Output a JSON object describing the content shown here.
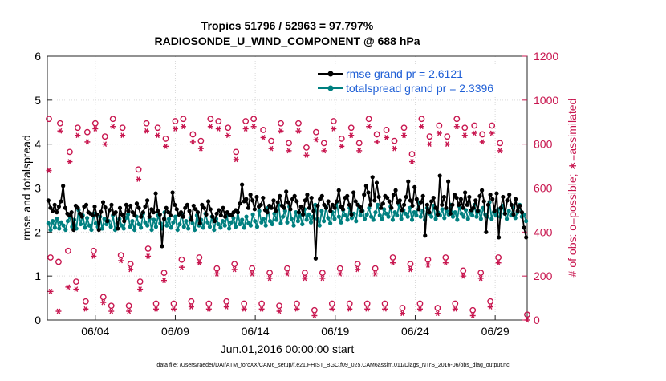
{
  "chart_data": {
    "type": "line",
    "title": "Tropics 51796 / 52963 = 97.797%",
    "subtitle": "RADIOSONDE_U_WIND_COMPONENT @ 688 hPa",
    "xlabel": "Jun.01,2016 00:00:00 start",
    "ylabel_left": "rmse and totalspread",
    "ylabel_right": "# of obs: o=possible; ∗=assimilated",
    "xlim": [
      1,
      31
    ],
    "ylim_left": [
      0,
      6
    ],
    "ylim_right": [
      0,
      1200
    ],
    "x_ticks": [
      4,
      9,
      14,
      19,
      24,
      29
    ],
    "x_tick_labels": [
      "06/04",
      "06/09",
      "06/14",
      "06/19",
      "06/24",
      "06/29"
    ],
    "y_left_ticks": [
      "0",
      "1",
      "2",
      "3",
      "4",
      "5",
      "6"
    ],
    "y_right_ticks": [
      "0",
      "200",
      "400",
      "600",
      "800",
      "1000",
      "1200"
    ],
    "legend_position": "top-right",
    "grid": true,
    "colors": {
      "rmse": "#000000",
      "spread": "#008080",
      "obs": "#c8164f"
    },
    "series": [
      {
        "name": "rmse grand pr = 2.6121",
        "axis": "left",
        "values": [
          2.72,
          2.55,
          2.48,
          2.62,
          2.45,
          2.58,
          2.7,
          3.05,
          2.55,
          2.42,
          2.38,
          2.45,
          2.05,
          2.6,
          2.55,
          2.42,
          2.35,
          2.58,
          2.62,
          2.45,
          2.42,
          2.38,
          2.58,
          2.4,
          2.05,
          2.46,
          2.68,
          2.56,
          2.25,
          2.5,
          2.62,
          2.42,
          2.45,
          2.08,
          2.55,
          2.4,
          2.25,
          2.62,
          2.48,
          2.6,
          2.45,
          2.38,
          2.65,
          2.55,
          2.35,
          2.45,
          2.58,
          2.72,
          2.35,
          2.52,
          2.45,
          2.88,
          2.48,
          2.4,
          1.68,
          2.3,
          2.55,
          2.45,
          2.38,
          2.9,
          2.62,
          2.52,
          2.4,
          2.45,
          2.35,
          2.55,
          2.62,
          2.48,
          2.28,
          2.6,
          2.52,
          2.45,
          2.2,
          2.62,
          2.55,
          2.4,
          2.7,
          2.52,
          2.35,
          2.25,
          2.42,
          2.5,
          2.38,
          2.55,
          2.35,
          2.45,
          2.4,
          2.38,
          2.45,
          2.5,
          2.45,
          2.65,
          3.08,
          2.7,
          2.75,
          2.55,
          2.85,
          2.72,
          2.52,
          2.8,
          2.58,
          2.62,
          2.78,
          2.5,
          2.45,
          2.6,
          2.55,
          2.72,
          2.48,
          2.68,
          2.82,
          2.6,
          2.55,
          2.92,
          2.68,
          2.52,
          2.75,
          2.82,
          2.7,
          2.45,
          2.58,
          2.4,
          2.72,
          2.85,
          2.55,
          2.78,
          2.48,
          1.4,
          2.6,
          2.75,
          2.82,
          2.62,
          2.55,
          2.7,
          2.48,
          2.62,
          2.55,
          2.7,
          2.95,
          2.58,
          2.52,
          2.78,
          2.82,
          2.62,
          2.4,
          2.9,
          2.7,
          2.62,
          2.58,
          2.48,
          2.85,
          3.05,
          2.9,
          2.62,
          3.25,
          2.72,
          3.12,
          2.8,
          2.55,
          2.65,
          2.82,
          2.78,
          2.7,
          2.55,
          2.85,
          2.95,
          2.68,
          2.72,
          2.5,
          2.62,
          2.8,
          3.15,
          2.72,
          2.6,
          3.02,
          2.75,
          2.52,
          2.68,
          2.82,
          1.92,
          2.62,
          2.45,
          2.7,
          2.78,
          2.55,
          2.4,
          3.28,
          2.62,
          2.8,
          2.55,
          3.15,
          2.42,
          2.62,
          2.85,
          2.78,
          2.62,
          2.75,
          2.55,
          2.9,
          2.62,
          2.8,
          2.5,
          2.55,
          2.72,
          2.48,
          2.82,
          2.95,
          2.7,
          2.0,
          2.62,
          2.85,
          2.75,
          2.48,
          2.88,
          1.88,
          2.55,
          2.8,
          2.42,
          2.72,
          2.85,
          2.62,
          2.4,
          2.75,
          2.48,
          2.6,
          2.45,
          2.1,
          1.88
        ],
        "marker": "filled-circle"
      },
      {
        "name": "totalspread grand pr = 2.3396",
        "axis": "left",
        "values": [
          2.2,
          2.05,
          2.25,
          2.1,
          2.3,
          2.08,
          2.22,
          2.15,
          2.05,
          2.25,
          2.35,
          2.12,
          2.28,
          2.08,
          2.5,
          2.18,
          2.38,
          2.1,
          2.32,
          2.15,
          2.05,
          2.42,
          2.2,
          2.12,
          2.35,
          2.08,
          2.3,
          2.18,
          2.25,
          2.12,
          2.38,
          2.05,
          2.2,
          2.3,
          2.15,
          2.08,
          2.32,
          2.4,
          2.12,
          2.25,
          2.05,
          2.35,
          2.18,
          2.1,
          2.42,
          2.22,
          2.15,
          2.3,
          2.05,
          2.28,
          2.12,
          2.38,
          2.2,
          2.08,
          2.45,
          2.15,
          2.3,
          2.1,
          2.22,
          2.35,
          2.05,
          2.18,
          2.4,
          2.12,
          2.25,
          2.08,
          2.32,
          2.2,
          2.05,
          2.38,
          2.15,
          2.28,
          2.1,
          2.42,
          2.22,
          2.12,
          2.35,
          2.05,
          2.3,
          2.18,
          2.1,
          2.25,
          2.15,
          2.38,
          2.08,
          2.22,
          2.32,
          2.12,
          2.45,
          2.18,
          2.28,
          2.1,
          2.35,
          2.2,
          2.15,
          2.4,
          2.25,
          2.12,
          2.48,
          2.22,
          2.3,
          2.15,
          2.55,
          2.25,
          2.18,
          2.42,
          2.28,
          2.62,
          2.2,
          2.35,
          2.48,
          2.22,
          2.58,
          2.3,
          2.15,
          2.45,
          2.25,
          2.38,
          2.18,
          2.52,
          2.28,
          2.4,
          2.22,
          2.35,
          2.62,
          2.3,
          2.15,
          2.48,
          2.25,
          2.58,
          2.32,
          2.2,
          2.45,
          2.3,
          2.68,
          2.35,
          2.22,
          2.5,
          2.38,
          2.28,
          2.55,
          2.32,
          2.42,
          2.25,
          2.62,
          2.38,
          2.48,
          2.3,
          2.4,
          2.55,
          2.35,
          2.28,
          2.45,
          2.62,
          2.38,
          2.3,
          2.52,
          2.42,
          2.35,
          2.58,
          2.28,
          2.45,
          2.38,
          2.62,
          2.3,
          2.5,
          2.42,
          2.35,
          2.55,
          2.28,
          2.45,
          2.38,
          2.68,
          2.35,
          2.48,
          2.28,
          2.55,
          2.42,
          2.35,
          2.6,
          2.3,
          2.45,
          2.38,
          2.52,
          2.32,
          2.48,
          2.4,
          2.62,
          2.35,
          2.45,
          2.28,
          2.58,
          2.42,
          2.35,
          2.5,
          2.3,
          2.45,
          2.38,
          2.62,
          2.35,
          2.48,
          2.3,
          2.55,
          2.4,
          2.35,
          2.68,
          2.3,
          2.45,
          2.38,
          2.52,
          2.35,
          2.6,
          2.42,
          2.3,
          2.48,
          2.38,
          2.55,
          2.32,
          2.45,
          2.62,
          2.35,
          2.4,
          2.25
        ],
        "marker": "filled-circle"
      },
      {
        "name": "obs possible",
        "axis": "right",
        "marker": "open-circle",
        "values": [
          900,
          270,
          250,
          880,
          300,
          750,
          160,
          860,
          70,
          840,
          300,
          880,
          90,
          820,
          50,
          900,
          280,
          860,
          50,
          240,
          670,
          160,
          880,
          310,
          60,
          860,
          200,
          810,
          60,
          890,
          260,
          900,
          70,
          830,
          270,
          800,
          60,
          900,
          220,
          890,
          70,
          860,
          240,
          750,
          60,
          890,
          220,
          900,
          60,
          850,
          200,
          800,
          50,
          880,
          220,
          790,
          60,
          880,
          200,
          770,
          30,
          840,
          200,
          790,
          60,
          890,
          220,
          810,
          60,
          860,
          240,
          790,
          60,
          900,
          220,
          830,
          60,
          850,
          270,
          800,
          40,
          860,
          240,
          740,
          60,
          900,
          260,
          820,
          40,
          870,
          270,
          820,
          60,
          900,
          210,
          860,
          30,
          870,
          200,
          830,
          70,
          870,
          270,
          790,
          10
        ],
        "x": [
          1.1,
          1.2,
          1.7,
          1.8,
          2.3,
          2.4,
          2.8,
          2.9,
          3.4,
          3.5,
          3.9,
          4.0,
          4.5,
          4.6,
          5.0,
          5.1,
          5.6,
          5.7,
          6.1,
          6.2,
          6.7,
          6.8,
          7.2,
          7.3,
          7.8,
          7.9,
          8.3,
          8.4,
          8.9,
          9.0,
          9.4,
          9.5,
          10.0,
          10.1,
          10.5,
          10.6,
          11.1,
          11.2,
          11.6,
          11.7,
          12.2,
          12.3,
          12.7,
          12.8,
          13.3,
          13.4,
          13.8,
          13.9,
          14.4,
          14.5,
          14.9,
          15.0,
          15.5,
          15.6,
          16.0,
          16.1,
          16.6,
          16.7,
          17.1,
          17.2,
          17.7,
          17.8,
          18.2,
          18.3,
          18.8,
          18.9,
          19.3,
          19.4,
          19.9,
          20.0,
          20.4,
          20.5,
          21.0,
          21.1,
          21.5,
          21.6,
          22.1,
          22.2,
          22.6,
          22.7,
          23.2,
          23.3,
          23.7,
          23.8,
          24.3,
          24.4,
          24.8,
          24.9,
          25.4,
          25.5,
          25.9,
          26.0,
          26.5,
          26.6,
          27.0,
          27.1,
          27.6,
          27.7,
          28.1,
          28.2,
          28.7,
          28.8,
          29.2,
          29.3,
          31.0
        ]
      },
      {
        "name": "obs assimilated",
        "axis": "right",
        "marker": "asterisk",
        "values": [
          680,
          130,
          40,
          860,
          150,
          720,
          140,
          840,
          50,
          810,
          290,
          870,
          80,
          800,
          40,
          880,
          270,
          840,
          40,
          230,
          640,
          140,
          860,
          290,
          50,
          840,
          180,
          790,
          50,
          870,
          240,
          880,
          60,
          810,
          260,
          780,
          50,
          880,
          210,
          870,
          60,
          840,
          230,
          730,
          50,
          870,
          210,
          880,
          50,
          830,
          190,
          780,
          40,
          860,
          210,
          770,
          50,
          860,
          190,
          750,
          20,
          820,
          190,
          770,
          50,
          870,
          210,
          790,
          50,
          840,
          230,
          770,
          50,
          880,
          210,
          810,
          50,
          830,
          260,
          780,
          30,
          840,
          230,
          720,
          50,
          880,
          250,
          800,
          30,
          850,
          260,
          800,
          50,
          880,
          200,
          840,
          20,
          850,
          190,
          810,
          60,
          850,
          260,
          770,
          0
        ],
        "x": [
          1.1,
          1.2,
          1.7,
          1.8,
          2.3,
          2.4,
          2.8,
          2.9,
          3.4,
          3.5,
          3.9,
          4.0,
          4.5,
          4.6,
          5.0,
          5.1,
          5.6,
          5.7,
          6.1,
          6.2,
          6.7,
          6.8,
          7.2,
          7.3,
          7.8,
          7.9,
          8.3,
          8.4,
          8.9,
          9.0,
          9.4,
          9.5,
          10.0,
          10.1,
          10.5,
          10.6,
          11.1,
          11.2,
          11.6,
          11.7,
          12.2,
          12.3,
          12.7,
          12.8,
          13.3,
          13.4,
          13.8,
          13.9,
          14.4,
          14.5,
          14.9,
          15.0,
          15.5,
          15.6,
          16.0,
          16.1,
          16.6,
          16.7,
          17.1,
          17.2,
          17.7,
          17.8,
          18.2,
          18.3,
          18.8,
          18.9,
          19.3,
          19.4,
          19.9,
          20.0,
          20.4,
          20.5,
          21.0,
          21.1,
          21.5,
          21.6,
          22.1,
          22.2,
          22.6,
          22.7,
          23.2,
          23.3,
          23.7,
          23.8,
          24.3,
          24.4,
          24.8,
          24.9,
          25.4,
          25.5,
          25.9,
          26.0,
          26.5,
          26.6,
          27.0,
          27.1,
          27.6,
          27.7,
          28.1,
          28.2,
          28.7,
          28.8,
          29.2,
          29.3,
          31.0
        ]
      }
    ]
  },
  "footer": "data file: /Users/raeder/DAI/ATM_forcXX/CAM6_setup/f.e21.FHIST_BGC.f09_025.CAM6assim.011/Diags_NTrS_2016-06/obs_diag_output.nc"
}
